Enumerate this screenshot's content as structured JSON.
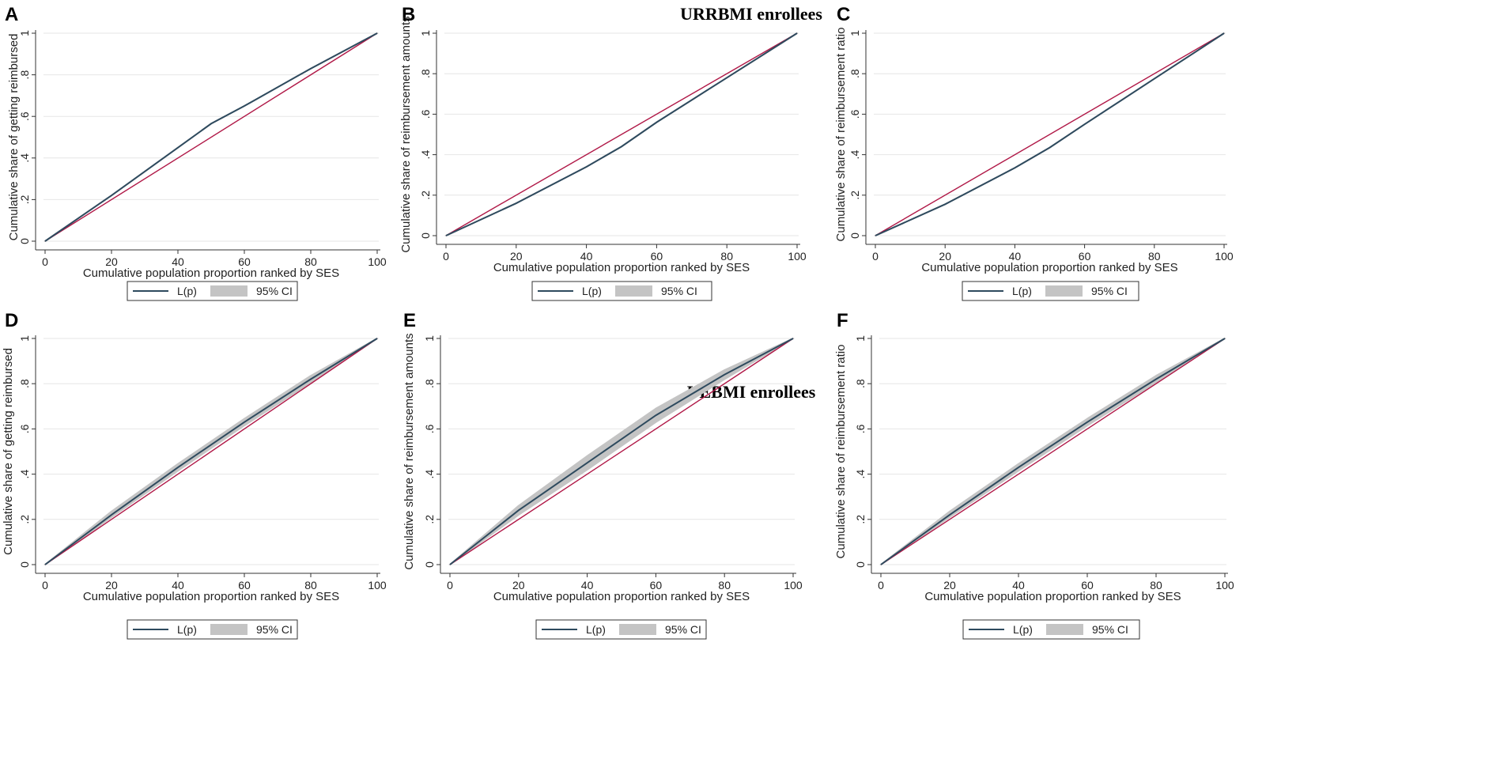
{
  "figure": {
    "group_titles": {
      "top": "URRBMI enrollees",
      "bottom": "UEBMI enrollees"
    },
    "colors": {
      "lorenz": "#2e4a5e",
      "equality": "#b01847",
      "ci_band": "#c4c4c4",
      "grid": "#e6e6e6",
      "axis": "#333333"
    }
  },
  "chart_data": [
    {
      "panel": "A",
      "type": "line",
      "xlabel": "Cumulative population proportion ranked by SES",
      "ylabel": "Cumulative share of getting reimbursed",
      "xlim": [
        0,
        100
      ],
      "ylim": [
        0,
        1
      ],
      "xticks": [
        "0",
        "20",
        "40",
        "60",
        "80",
        "100"
      ],
      "yticks": [
        "0",
        ".2",
        ".4",
        ".6",
        ".8",
        "1"
      ],
      "x": [
        0,
        20,
        40,
        50,
        60,
        80,
        100
      ],
      "series": [
        {
          "name": "L(p)",
          "values": [
            0,
            0.22,
            0.45,
            0.565,
            0.65,
            0.83,
            1.0
          ]
        },
        {
          "name": "95% CI lower",
          "values": [
            0,
            0.22,
            0.45,
            0.565,
            0.65,
            0.83,
            1.0
          ]
        },
        {
          "name": "95% CI upper",
          "values": [
            0,
            0.22,
            0.45,
            0.565,
            0.65,
            0.83,
            1.0
          ]
        }
      ],
      "legend": [
        "L(p)",
        "95% CI"
      ]
    },
    {
      "panel": "B",
      "type": "line",
      "xlabel": "Cumulative population proportion ranked by SES",
      "ylabel": "Cumulative share of reimbursement amounts",
      "xlim": [
        0,
        100
      ],
      "ylim": [
        0,
        1
      ],
      "xticks": [
        "0",
        "20",
        "40",
        "60",
        "80",
        "100"
      ],
      "yticks": [
        "0",
        ".2",
        ".4",
        ".6",
        ".8",
        "1"
      ],
      "x": [
        0,
        20,
        40,
        50,
        60,
        80,
        100
      ],
      "series": [
        {
          "name": "L(p)",
          "values": [
            0,
            0.16,
            0.34,
            0.44,
            0.56,
            0.78,
            1.0
          ]
        },
        {
          "name": "95% CI lower",
          "values": [
            0,
            0.16,
            0.34,
            0.44,
            0.56,
            0.78,
            1.0
          ]
        },
        {
          "name": "95% CI upper",
          "values": [
            0,
            0.16,
            0.34,
            0.44,
            0.56,
            0.78,
            1.0
          ]
        }
      ],
      "legend": [
        "L(p)",
        "95% CI"
      ]
    },
    {
      "panel": "C",
      "type": "line",
      "xlabel": "Cumulative population proportion ranked by SES",
      "ylabel": "Cumulative share of reimbursement ratio",
      "xlim": [
        0,
        100
      ],
      "ylim": [
        0,
        1
      ],
      "xticks": [
        "0",
        "20",
        "40",
        "60",
        "80",
        "100"
      ],
      "yticks": [
        "0",
        ".2",
        ".4",
        ".6",
        ".8",
        "1"
      ],
      "x": [
        0,
        20,
        40,
        50,
        60,
        80,
        100
      ],
      "series": [
        {
          "name": "L(p)",
          "values": [
            0,
            0.155,
            0.335,
            0.435,
            0.55,
            0.775,
            1.0
          ]
        },
        {
          "name": "95% CI lower",
          "values": [
            0,
            0.155,
            0.335,
            0.435,
            0.55,
            0.775,
            1.0
          ]
        },
        {
          "name": "95% CI upper",
          "values": [
            0,
            0.155,
            0.335,
            0.435,
            0.55,
            0.775,
            1.0
          ]
        }
      ],
      "legend": [
        "L(p)",
        "95% CI"
      ]
    },
    {
      "panel": "D",
      "type": "line",
      "xlabel": "Cumulative population proportion ranked by SES",
      "ylabel": "Cumulative share of getting reimbursed",
      "xlim": [
        0,
        100
      ],
      "ylim": [
        0,
        1
      ],
      "xticks": [
        "0",
        "20",
        "40",
        "60",
        "80",
        "100"
      ],
      "yticks": [
        "0",
        ".2",
        ".4",
        ".6",
        ".8",
        "1"
      ],
      "x": [
        0,
        20,
        40,
        60,
        80,
        100
      ],
      "series": [
        {
          "name": "L(p)",
          "values": [
            0,
            0.22,
            0.43,
            0.63,
            0.82,
            1.0
          ]
        },
        {
          "name": "95% CI lower",
          "values": [
            0,
            0.21,
            0.415,
            0.615,
            0.805,
            1.0
          ]
        },
        {
          "name": "95% CI upper",
          "values": [
            0,
            0.235,
            0.445,
            0.645,
            0.835,
            1.0
          ]
        }
      ],
      "legend": [
        "L(p)",
        "95% CI"
      ]
    },
    {
      "panel": "E",
      "type": "line",
      "xlabel": "Cumulative population proportion ranked by SES",
      "ylabel": "Cumulative share of reimbursement amounts",
      "xlim": [
        0,
        100
      ],
      "ylim": [
        0,
        1
      ],
      "xticks": [
        "0",
        "20",
        "40",
        "60",
        "80",
        "100"
      ],
      "yticks": [
        "0",
        ".2",
        ".4",
        ".6",
        ".8",
        "1"
      ],
      "x": [
        0,
        20,
        40,
        50,
        60,
        80,
        100
      ],
      "series": [
        {
          "name": "L(p)",
          "values": [
            0,
            0.24,
            0.45,
            0.555,
            0.66,
            0.84,
            1.0
          ]
        },
        {
          "name": "95% CI lower",
          "values": [
            0,
            0.22,
            0.42,
            0.525,
            0.63,
            0.82,
            1.0
          ]
        },
        {
          "name": "95% CI upper",
          "values": [
            0,
            0.26,
            0.48,
            0.585,
            0.69,
            0.86,
            1.0
          ]
        }
      ],
      "legend": [
        "L(p)",
        "95% CI"
      ]
    },
    {
      "panel": "F",
      "type": "line",
      "xlabel": "Cumulative population proportion ranked by SES",
      "ylabel": "Cumulative share of reimbursement ratio",
      "xlim": [
        0,
        100
      ],
      "ylim": [
        0,
        1
      ],
      "xticks": [
        "0",
        "20",
        "40",
        "60",
        "80",
        "100"
      ],
      "yticks": [
        "0",
        ".2",
        ".4",
        ".6",
        ".8",
        "1"
      ],
      "x": [
        0,
        20,
        40,
        60,
        80,
        100
      ],
      "series": [
        {
          "name": "L(p)",
          "values": [
            0,
            0.22,
            0.43,
            0.63,
            0.82,
            1.0
          ]
        },
        {
          "name": "95% CI lower",
          "values": [
            0,
            0.21,
            0.415,
            0.615,
            0.805,
            1.0
          ]
        },
        {
          "name": "95% CI upper",
          "values": [
            0,
            0.235,
            0.445,
            0.645,
            0.835,
            1.0
          ]
        }
      ],
      "legend": [
        "L(p)",
        "95% CI"
      ]
    }
  ]
}
